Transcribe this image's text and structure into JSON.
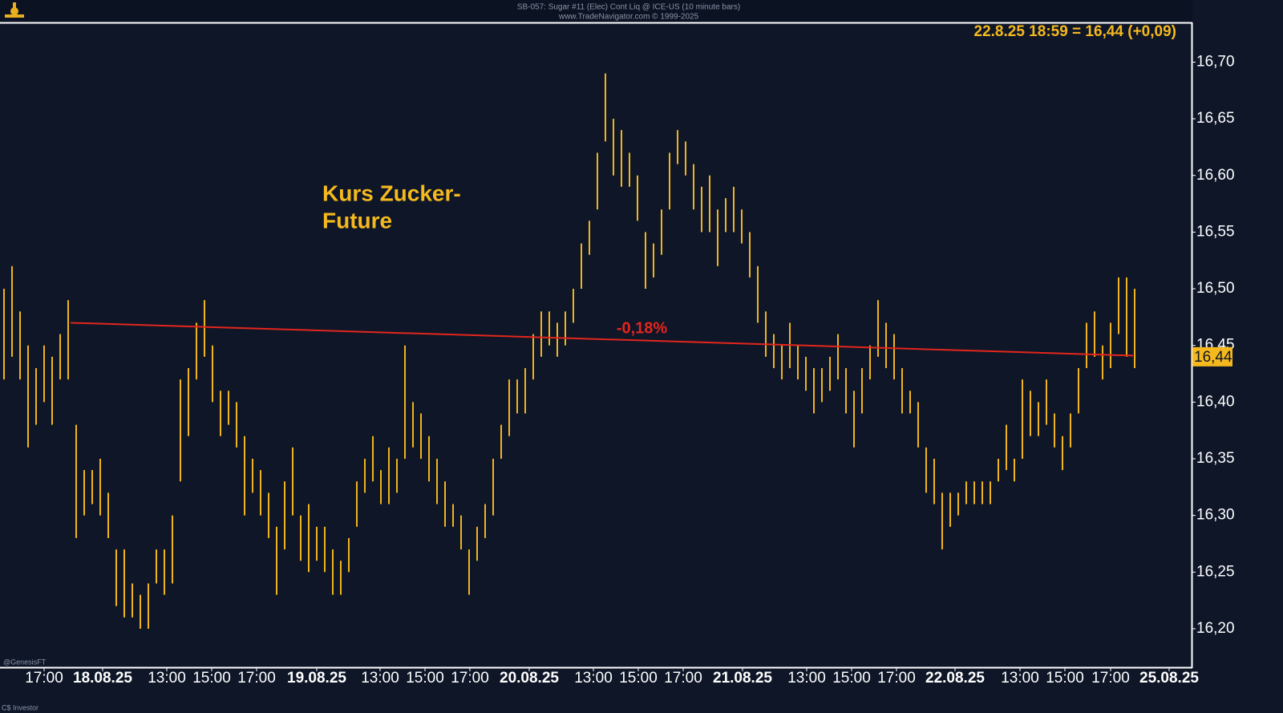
{
  "chart_data": {
    "type": "range_bar",
    "title": "SB-057:  Sugar #11 (Elec) Cont Liq @ ICE-US  (10 minute bars)",
    "subtitle": "www.TradeNavigator.com © 1999-2025",
    "quote": "22.8.25 18:59 = 16,44 (+0,09)",
    "annotation": [
      "Kurs Zucker-",
      "Future"
    ],
    "footer": [
      "@GenesisFT",
      "C$ Investor"
    ],
    "color": "#f0b41e",
    "x": [
      0,
      1,
      2,
      3,
      4,
      5,
      6,
      7,
      8,
      9,
      10,
      11,
      12,
      13,
      14,
      15,
      16,
      17,
      18,
      19,
      20,
      21,
      22,
      23,
      24,
      25,
      26,
      27,
      28,
      29,
      30,
      31,
      32,
      33,
      34,
      35,
      36,
      37,
      38,
      39,
      40,
      41,
      42,
      43,
      44,
      45,
      46,
      47,
      48,
      49,
      50,
      51,
      52,
      53,
      54,
      55,
      56,
      57,
      58,
      59,
      60,
      61,
      62,
      63,
      64,
      65,
      66,
      67,
      68,
      69,
      70,
      71,
      72,
      73,
      74,
      75,
      76,
      77,
      78,
      79,
      80,
      81,
      82,
      83,
      84,
      85,
      86,
      87,
      88,
      89,
      90,
      91,
      92,
      93,
      94,
      95,
      96,
      97,
      98,
      99,
      100,
      101,
      102,
      103,
      104,
      105,
      106,
      107,
      108,
      109,
      110,
      111,
      112,
      113,
      114,
      115,
      116,
      117,
      118,
      119,
      120,
      121,
      122,
      123,
      124,
      125,
      126,
      127,
      128,
      129,
      130,
      131,
      132,
      133,
      134,
      135,
      136,
      137,
      138,
      139,
      140,
      141
    ],
    "high": [
      16.5,
      16.52,
      16.48,
      16.45,
      16.43,
      16.45,
      16.44,
      16.46,
      16.49,
      16.38,
      16.34,
      16.34,
      16.35,
      16.32,
      16.27,
      16.27,
      16.24,
      16.23,
      16.24,
      16.27,
      16.27,
      16.3,
      16.42,
      16.43,
      16.47,
      16.49,
      16.45,
      16.41,
      16.41,
      16.4,
      16.37,
      16.35,
      16.34,
      16.32,
      16.29,
      16.33,
      16.36,
      16.3,
      16.31,
      16.29,
      16.29,
      16.27,
      16.26,
      16.28,
      16.33,
      16.35,
      16.37,
      16.34,
      16.36,
      16.35,
      16.45,
      16.4,
      16.39,
      16.37,
      16.35,
      16.33,
      16.31,
      16.3,
      16.27,
      16.29,
      16.31,
      16.35,
      16.38,
      16.42,
      16.42,
      16.43,
      16.46,
      16.48,
      16.48,
      16.47,
      16.48,
      16.5,
      16.54,
      16.56,
      16.62,
      16.69,
      16.65,
      16.64,
      16.62,
      16.6,
      16.55,
      16.54,
      16.57,
      16.62,
      16.64,
      16.63,
      16.61,
      16.59,
      16.6,
      16.57,
      16.58,
      16.59,
      16.57,
      16.55,
      16.52,
      16.48,
      16.46,
      16.45,
      16.47,
      16.45,
      16.44,
      16.43,
      16.43,
      16.44,
      16.46,
      16.43,
      16.41,
      16.43,
      16.45,
      16.49,
      16.47,
      16.46,
      16.43,
      16.41,
      16.4,
      16.36,
      16.35,
      16.32,
      16.32,
      16.32,
      16.33,
      16.33,
      16.33,
      16.33,
      16.35,
      16.38,
      16.35,
      16.42,
      16.41,
      16.4,
      16.42,
      16.39,
      16.37,
      16.39,
      16.43,
      16.47,
      16.48,
      16.45,
      16.47,
      16.51,
      16.51,
      16.5
    ],
    "low": [
      16.42,
      16.44,
      16.42,
      16.36,
      16.38,
      16.4,
      16.38,
      16.42,
      16.42,
      16.28,
      16.3,
      16.31,
      16.3,
      16.28,
      16.22,
      16.21,
      16.21,
      16.2,
      16.2,
      16.24,
      16.23,
      16.24,
      16.33,
      16.37,
      16.42,
      16.44,
      16.4,
      16.37,
      16.38,
      16.36,
      16.3,
      16.32,
      16.3,
      16.28,
      16.23,
      16.27,
      16.3,
      16.26,
      16.25,
      16.26,
      16.25,
      16.23,
      16.23,
      16.25,
      16.29,
      16.32,
      16.33,
      16.31,
      16.31,
      16.32,
      16.35,
      16.36,
      16.35,
      16.33,
      16.31,
      16.29,
      16.29,
      16.27,
      16.23,
      16.26,
      16.28,
      16.3,
      16.35,
      16.37,
      16.39,
      16.39,
      16.42,
      16.44,
      16.45,
      16.44,
      16.45,
      16.47,
      16.5,
      16.53,
      16.57,
      16.63,
      16.6,
      16.59,
      16.59,
      16.56,
      16.5,
      16.51,
      16.53,
      16.57,
      16.61,
      16.6,
      16.57,
      16.55,
      16.55,
      16.52,
      16.55,
      16.55,
      16.54,
      16.51,
      16.47,
      16.44,
      16.43,
      16.42,
      16.43,
      16.42,
      16.41,
      16.39,
      16.4,
      16.41,
      16.42,
      16.39,
      16.36,
      16.39,
      16.42,
      16.44,
      16.43,
      16.42,
      16.39,
      16.39,
      16.36,
      16.32,
      16.31,
      16.27,
      16.29,
      16.3,
      16.31,
      16.31,
      16.31,
      16.31,
      16.33,
      16.34,
      16.33,
      16.35,
      16.37,
      16.37,
      16.38,
      16.36,
      16.34,
      16.36,
      16.39,
      16.43,
      16.44,
      16.42,
      16.43,
      16.46,
      16.44,
      16.43
    ],
    "trendline": {
      "x": [
        8.3,
        140.8
      ],
      "values": [
        16.47,
        16.441
      ],
      "color": "#e3261c",
      "label": "-0,18%"
    },
    "last_price": {
      "value": 16.44,
      "label": "16,44",
      "color": "#f5b91e"
    },
    "xlim": [
      -0.5,
      148
    ],
    "ylim": [
      16.166,
      16.735
    ],
    "yticks": [
      {
        "value": 16.2,
        "label": "16,20"
      },
      {
        "value": 16.25,
        "label": "16,25"
      },
      {
        "value": 16.3,
        "label": "16,30"
      },
      {
        "value": 16.35,
        "label": "16,35"
      },
      {
        "value": 16.4,
        "label": "16,40"
      },
      {
        "value": 16.45,
        "label": "16,45"
      },
      {
        "value": 16.5,
        "label": "16,50"
      },
      {
        "value": 16.55,
        "label": "16,55"
      },
      {
        "value": 16.6,
        "label": "16,60"
      },
      {
        "value": 16.65,
        "label": "16,65"
      },
      {
        "value": 16.7,
        "label": "16,70"
      }
    ],
    "xticks": [
      {
        "value": 5,
        "label": "17:00"
      },
      {
        "value": 12.3,
        "label": "18.08.25"
      },
      {
        "value": 20.3,
        "label": "13:00"
      },
      {
        "value": 25.9,
        "label": "15:00"
      },
      {
        "value": 31.5,
        "label": "17:00"
      },
      {
        "value": 39,
        "label": "19.08.25"
      },
      {
        "value": 46.9,
        "label": "13:00"
      },
      {
        "value": 52.5,
        "label": "15:00"
      },
      {
        "value": 58.1,
        "label": "17:00"
      },
      {
        "value": 65.5,
        "label": "20.08.25"
      },
      {
        "value": 73.5,
        "label": "13:00"
      },
      {
        "value": 79.1,
        "label": "15:00"
      },
      {
        "value": 84.7,
        "label": "17:00"
      },
      {
        "value": 92.1,
        "label": "21.08.25"
      },
      {
        "value": 100.1,
        "label": "13:00"
      },
      {
        "value": 105.7,
        "label": "15:00"
      },
      {
        "value": 111.3,
        "label": "17:00"
      },
      {
        "value": 118.6,
        "label": "22.08.25"
      },
      {
        "value": 126.7,
        "label": "13:00"
      },
      {
        "value": 132.3,
        "label": "15:00"
      },
      {
        "value": 138,
        "label": "17:00"
      },
      {
        "value": 145.3,
        "label": "25.08.25"
      }
    ]
  }
}
